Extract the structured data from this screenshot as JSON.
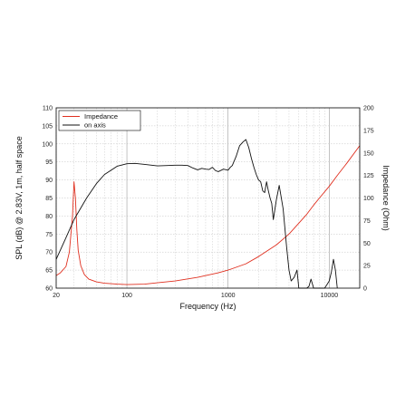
{
  "chart_data": {
    "type": "line",
    "xlabel": "Frequency (Hz)",
    "ylabel_left": "SPL (dB) @ 2.83V, 1m, half space",
    "ylabel_right": "Impedance (Ohm)",
    "x_scale": "log",
    "xlim": [
      20,
      20000
    ],
    "ylim_left": [
      60,
      110
    ],
    "ylim_right": [
      0,
      200
    ],
    "x_ticks": [
      "20",
      "100",
      "1000",
      "10000"
    ],
    "y_ticks_left": [
      "60",
      "65",
      "70",
      "75",
      "80",
      "85",
      "90",
      "95",
      "100",
      "105",
      "110"
    ],
    "y_ticks_right": [
      "0",
      "25",
      "50",
      "75",
      "100",
      "125",
      "150",
      "175",
      "200"
    ],
    "grid": true,
    "legend_position": "top-left",
    "series": [
      {
        "name": "Impedance",
        "axis": "right",
        "color": "#e03020",
        "x": [
          20,
          22,
          25,
          27,
          29,
          30,
          31,
          32,
          33,
          35,
          38,
          42,
          50,
          60,
          80,
          100,
          150,
          200,
          300,
          500,
          800,
          1000,
          1500,
          2000,
          3000,
          4000,
          5000,
          6000,
          7000,
          8000,
          10000,
          12000,
          15000,
          20000
        ],
        "y": [
          14,
          17,
          24,
          40,
          80,
          118,
          100,
          65,
          42,
          25,
          15,
          10,
          7,
          5.5,
          4.5,
          4,
          4.5,
          6,
          8,
          12,
          17,
          20,
          27,
          35,
          48,
          60,
          72,
          82,
          92,
          100,
          113,
          125,
          139,
          158
        ]
      },
      {
        "name": "on axis",
        "axis": "left",
        "color": "#111111",
        "x": [
          20,
          25,
          30,
          40,
          50,
          60,
          80,
          100,
          120,
          150,
          200,
          250,
          300,
          350,
          400,
          450,
          500,
          550,
          600,
          650,
          700,
          750,
          800,
          900,
          1000,
          1050,
          1100,
          1200,
          1300,
          1400,
          1500,
          1600,
          1700,
          1800,
          1900,
          2000,
          2100,
          2200,
          2300,
          2400,
          2500,
          2600,
          2700,
          2800,
          3000,
          3200,
          3500,
          3800,
          4000,
          4200,
          4500,
          4800,
          5000,
          5300,
          5600,
          6000,
          6300,
          6600,
          7000,
          7500,
          8000,
          8500,
          9000,
          9500,
          10000,
          10500,
          11000,
          11500,
          12000
        ],
        "y": [
          68,
          74,
          79,
          85,
          89,
          91.5,
          93.8,
          94.5,
          94.6,
          94.3,
          93.9,
          94.0,
          94.1,
          94.1,
          94.0,
          93.3,
          92.8,
          93.2,
          93.0,
          92.9,
          93.5,
          92.6,
          92.3,
          93.0,
          92.7,
          93.5,
          94.0,
          96.5,
          99.5,
          100.5,
          101.2,
          99,
          96,
          93.5,
          91.5,
          90,
          89.5,
          87,
          86.5,
          89.5,
          87,
          85,
          83.5,
          79,
          84.5,
          88.5,
          82,
          71,
          65,
          62,
          63,
          65,
          60,
          56,
          60,
          54,
          60.5,
          62.5,
          58,
          56,
          57,
          60,
          58,
          61,
          62,
          64.5,
          68,
          65,
          58
        ]
      }
    ]
  }
}
